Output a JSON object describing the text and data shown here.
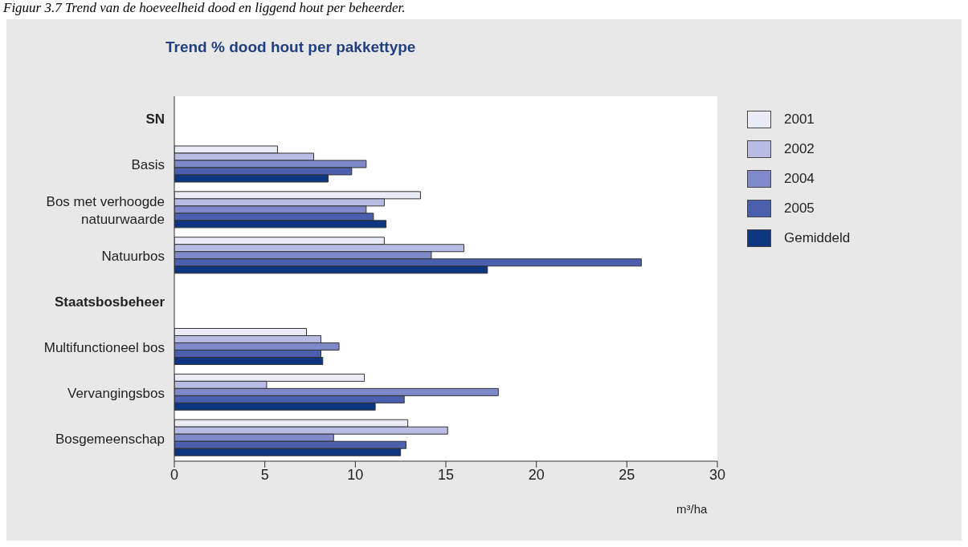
{
  "chart_data": {
    "type": "bar",
    "orientation": "horizontal",
    "title": "Trend % dood hout per pakkettype",
    "xlabel": "m³/ha",
    "annotations": [
      "Figuur 3.7 Trend van de hoeveelheid dood en liggend hout per beheerder."
    ],
    "categories": [
      "SN",
      "Basis",
      "Bos met verhoogde natuurwaarde",
      "Natuurbos",
      "Staatsbosbeheer",
      "Multifunctioneel bos",
      "Vervangingsbos",
      "Bosgemeenschap"
    ],
    "series": [
      {
        "name": "2001",
        "color": "#ebebf8",
        "values": [
          null,
          5.7,
          13.6,
          11.6,
          null,
          7.3,
          10.5,
          12.9
        ]
      },
      {
        "name": "2002",
        "color": "#b8bce4",
        "values": [
          null,
          7.7,
          11.6,
          16.0,
          null,
          8.1,
          5.1,
          15.1
        ]
      },
      {
        "name": "2004",
        "color": "#7f88c8",
        "values": [
          null,
          10.6,
          10.6,
          14.2,
          null,
          9.1,
          17.9,
          8.8
        ]
      },
      {
        "name": "2005",
        "color": "#4a5fae",
        "values": [
          null,
          9.8,
          11.0,
          25.8,
          null,
          8.1,
          12.7,
          12.8
        ]
      },
      {
        "name": "Gemiddeld",
        "color": "#0d3580",
        "values": [
          null,
          8.5,
          11.7,
          17.3,
          null,
          8.2,
          11.1,
          12.5
        ]
      }
    ],
    "xlim": [
      0,
      30
    ],
    "xticks": [
      0,
      5,
      10,
      15,
      20,
      25,
      30
    ],
    "legend": "top right"
  }
}
